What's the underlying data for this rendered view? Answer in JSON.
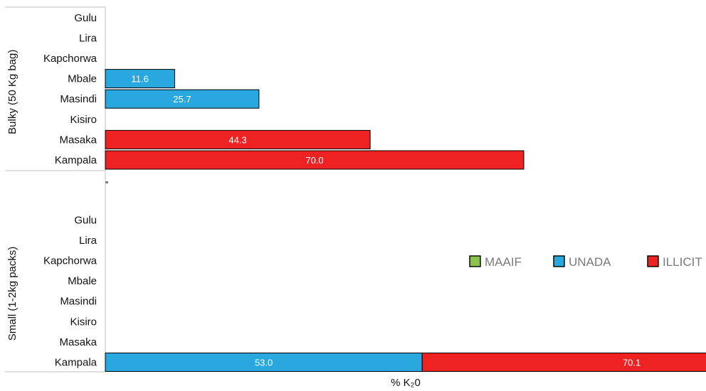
{
  "chart_data": {
    "type": "bar",
    "orientation": "horizontal",
    "stacked": true,
    "categories": [
      "Gulu",
      "Lira",
      "Kapchorwa",
      "Mbale",
      "Masindi",
      "Kisiro",
      "Masaka",
      "Kampala"
    ],
    "groups": [
      {
        "name": "Bulky (50 Kg bag)",
        "series": [
          {
            "name": "MAAIF",
            "values": [
              0,
              0,
              0,
              0,
              0,
              0,
              0,
              0
            ]
          },
          {
            "name": "UNADA",
            "values": [
              0,
              0,
              0,
              11.6,
              25.7,
              0,
              0,
              0
            ]
          },
          {
            "name": "ILLICIT",
            "values": [
              0,
              0,
              0,
              0,
              0,
              0,
              44.3,
              70.0
            ]
          }
        ]
      },
      {
        "name": "Small (1-2kg packs)",
        "series": [
          {
            "name": "MAAIF",
            "values": [
              0,
              0,
              0,
              0,
              0,
              0,
              0,
              0
            ]
          },
          {
            "name": "UNADA",
            "values": [
              0,
              0,
              0,
              0,
              0,
              0,
              0,
              53.0
            ]
          },
          {
            "name": "ILLICIT",
            "values": [
              0,
              0,
              0,
              0,
              0,
              0,
              0,
              70.1
            ]
          }
        ]
      }
    ],
    "xlabel": "% K₂0",
    "xlim": [
      0,
      125
    ],
    "legend": {
      "position": "right",
      "entries": [
        {
          "name": "MAAIF",
          "color": "#8BC34A"
        },
        {
          "name": "UNADA",
          "color": "#29A8E0"
        },
        {
          "name": "ILLICIT",
          "color": "#EE2222"
        }
      ]
    },
    "grid": false
  }
}
